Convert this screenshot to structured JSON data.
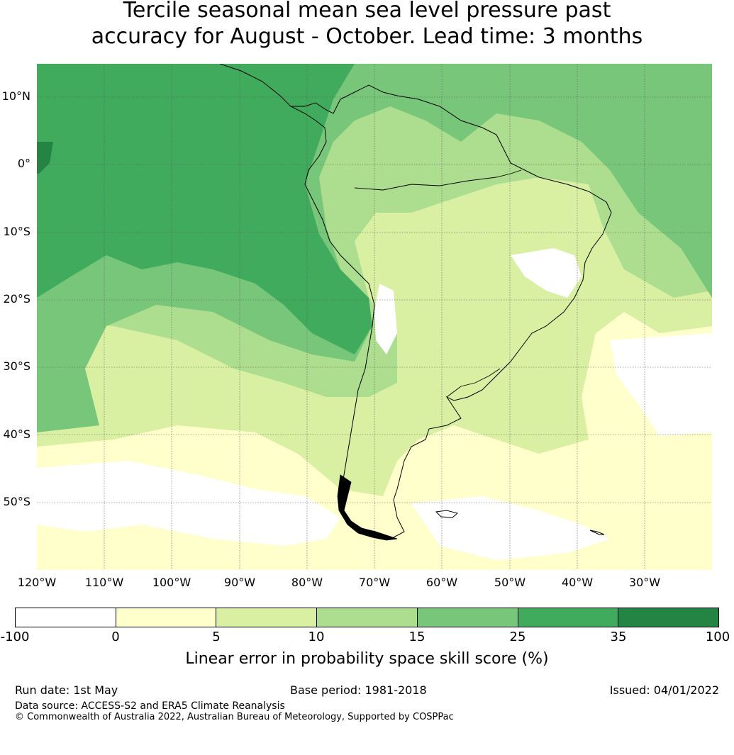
{
  "title": {
    "line1": "Tercile seasonal mean sea level pressure past",
    "line2": "accuracy for August - October. Lead time: 3 months"
  },
  "map": {
    "lat_labels": [
      "10°N",
      "0°",
      "10°S",
      "20°S",
      "30°S",
      "40°S",
      "50°S"
    ],
    "lon_labels": [
      "120°W",
      "110°W",
      "100°W",
      "90°W",
      "80°W",
      "70°W",
      "60°W",
      "50°W",
      "40°W",
      "30°W"
    ],
    "lon_range": [
      -120,
      -20
    ],
    "lat_range": [
      -60,
      15
    ],
    "region": "South America",
    "colors": {
      "lt0": "#ffffff",
      "0_5": "#ffffcc",
      "5_10": "#d9f0a3",
      "10_15": "#addd8e",
      "15_25": "#78c679",
      "25_35": "#41ab5d",
      "35_100": "#238443"
    }
  },
  "colorbar": {
    "ticks": [
      "-100",
      "0",
      "5",
      "10",
      "15",
      "25",
      "35",
      "100"
    ],
    "colors": [
      "#ffffff",
      "#ffffcc",
      "#d9f0a3",
      "#addd8e",
      "#78c679",
      "#41ab5d",
      "#238443"
    ],
    "label": "Linear error in probability space skill score (%)"
  },
  "footer": {
    "run_date": "Run date: 1st May",
    "base_period": "Base period: 1981-2018",
    "issued": "Issued: 04/01/2022",
    "data_source": "Data source: ACCESS-S2 and ERA5 Climate Reanalysis",
    "copyright": "© Commonwealth of Australia 2022, Australian Bureau of Meteorology, Supported by COSPPac"
  }
}
